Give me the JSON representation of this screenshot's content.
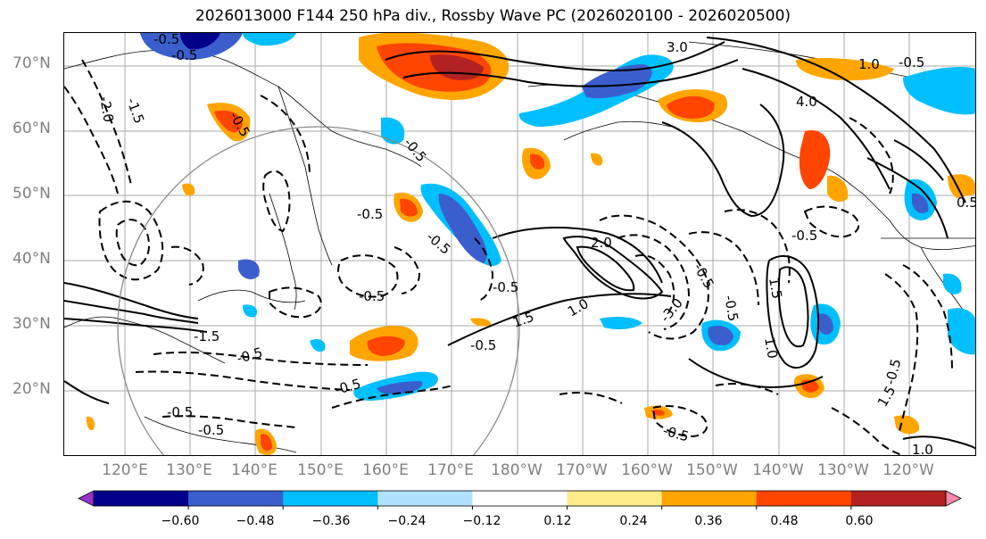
{
  "title": "2026013000 F144 250 hPa div., Rossby Wave PC (2026020100 - 2026020500)",
  "lat_labels": [
    "70°N",
    "60°N",
    "50°N",
    "40°N",
    "30°N",
    "20°N"
  ],
  "lon_labels": [
    "120°E",
    "130°E",
    "140°E",
    "150°E",
    "160°E",
    "170°E",
    "180°W",
    "170°W",
    "160°W",
    "150°W",
    "140°W",
    "130°W",
    "120°W"
  ],
  "colorbar": {
    "ticks": [
      "−0.60",
      "−0.48",
      "−0.36",
      "−0.24",
      "−0.12",
      "0.12",
      "0.24",
      "0.36",
      "0.48",
      "0.60"
    ],
    "colors": [
      "#9932cc",
      "#00008b",
      "#3a5fcd",
      "#00bfff",
      "#b0e2ff",
      "#ffffff",
      "#ffeb8a",
      "#ffa500",
      "#ff4500",
      "#b22222",
      "#ff88aa"
    ]
  },
  "contour_labels": {
    "l1": "-0.5",
    "l2": "-2.0",
    "l3": "-1.5",
    "l4": "-0.5",
    "l5": "3.0",
    "l6": "1.0",
    "l7": "-0.5",
    "l8": "4.0",
    "l9": "-0.5",
    "l10": "-0.5",
    "l11": "-0.5",
    "l12": "-0.5",
    "l13": "-0.5",
    "l14": "-0.5",
    "l15": "2.0",
    "l16": "-0.5",
    "l17": "1.0",
    "l18": "1.5",
    "l19": "-0.5",
    "l20": "-3.0",
    "l21": "-0.5",
    "l22": "1.5",
    "l23": "1.0",
    "l24": "-0.5",
    "l25": "0.5",
    "l26": "-0.5",
    "l27": "-0.5",
    "l28": "-0.5",
    "l29": "-1.5",
    "l30": "1.0",
    "l31": "-0.5",
    "l32": "1.5",
    "l33": "-0.5",
    "l34": "-0.5"
  }
}
